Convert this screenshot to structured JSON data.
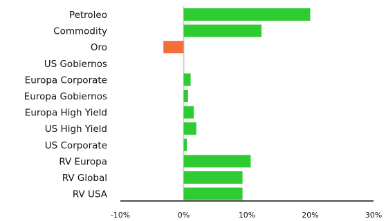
{
  "chart_data": {
    "type": "bar",
    "orientation": "horizontal",
    "title": "",
    "xlabel": "",
    "ylabel": "",
    "categories": [
      "Petroleo",
      "Commodity",
      "Oro",
      "US Gobiernos",
      "Europa Corporate",
      "Europa Gobiernos",
      "Europa High Yield",
      "US High Yield",
      "US Corporate",
      "RV Europa",
      "RV Global",
      "RV USA"
    ],
    "values": [
      20.0,
      12.3,
      -3.2,
      0.0,
      1.1,
      0.7,
      1.6,
      2.0,
      0.5,
      10.6,
      9.3,
      9.3
    ],
    "xlim": [
      -10,
      30
    ],
    "ticks": [
      -10,
      0,
      10,
      20,
      30
    ],
    "tick_labels": [
      "-10%",
      "0%",
      "10%",
      "20%",
      "30%"
    ],
    "grid": false,
    "colors": {
      "positive": "#2ecc30",
      "negative": "#f26f3c",
      "axis": "#111111",
      "zero_line": "#d0d0d0"
    }
  }
}
